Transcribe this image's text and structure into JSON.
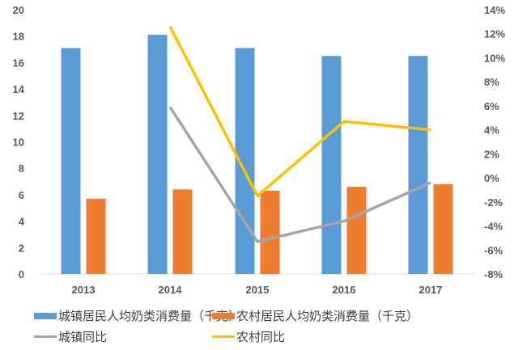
{
  "chart_data": {
    "type": "bar+line",
    "categories": [
      "2013",
      "2014",
      "2015",
      "2016",
      "2017"
    ],
    "series": [
      {
        "name": "城镇居民人均奶类消费量（千克）",
        "type": "bar",
        "axis": "left",
        "color": "#5B9BD5",
        "values": [
          17.1,
          18.1,
          17.1,
          16.5,
          16.5
        ]
      },
      {
        "name": "农村居民人均奶类消费量（千克）",
        "type": "bar",
        "axis": "left",
        "color": "#ED7D31",
        "values": [
          5.7,
          6.4,
          6.3,
          6.6,
          6.8
        ]
      },
      {
        "name": "城镇同比",
        "type": "line",
        "axis": "right",
        "color": "#A5A5A5",
        "values": [
          null,
          5.9,
          -5.3,
          -3.6,
          -0.4
        ]
      },
      {
        "name": "农村同比",
        "type": "line",
        "axis": "right",
        "color": "#FFC000",
        "values": [
          null,
          12.6,
          -1.5,
          4.7,
          4.0
        ]
      }
    ],
    "left_axis": {
      "ticks": [
        "0",
        "2",
        "4",
        "6",
        "8",
        "10",
        "12",
        "14",
        "16",
        "18",
        "20"
      ],
      "ylim": [
        0,
        20
      ]
    },
    "right_axis": {
      "ticks": [
        "-8%",
        "-6%",
        "-4%",
        "-2%",
        "0%",
        "2%",
        "4%",
        "6%",
        "8%",
        "10%",
        "12%",
        "14%"
      ],
      "ylim": [
        -8,
        14
      ]
    },
    "title": "",
    "xlabel": "",
    "ylabel": "",
    "grid": false,
    "legend_position": "bottom"
  },
  "legend": [
    {
      "label": "城镇居民人均奶类消费量（千克）",
      "kind": "bar",
      "color": "#5B9BD5"
    },
    {
      "label": "农村居民人均奶类消费量（千克）",
      "kind": "bar",
      "color": "#ED7D31"
    },
    {
      "label": "城镇同比",
      "kind": "line",
      "color": "#A5A5A5"
    },
    {
      "label": "农村同比",
      "kind": "line",
      "color": "#FFC000"
    }
  ]
}
